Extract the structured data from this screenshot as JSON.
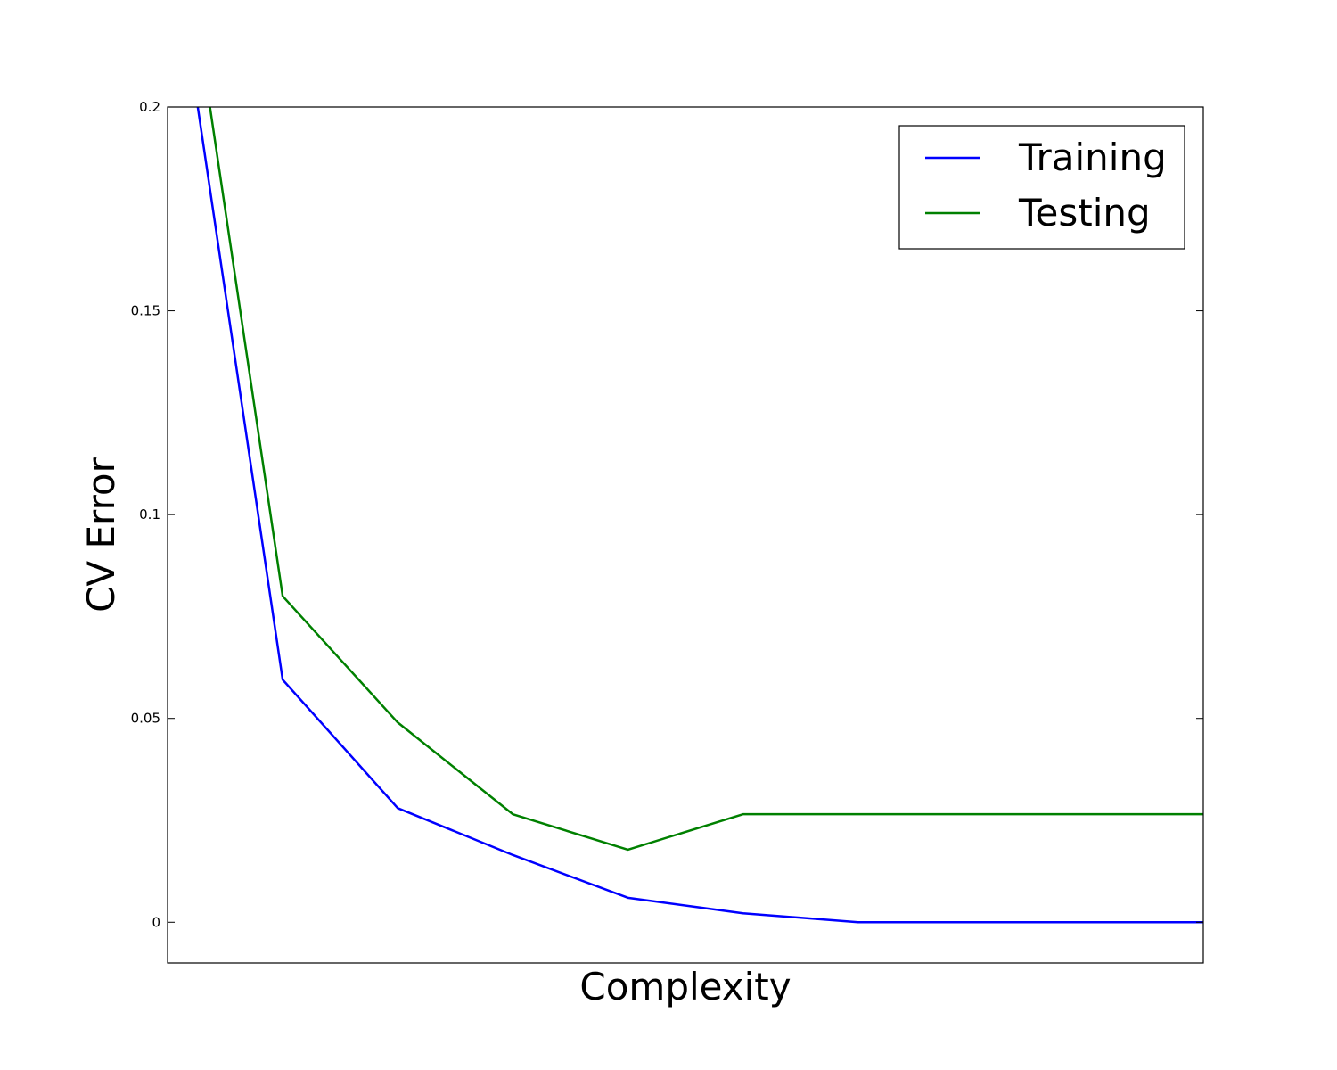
{
  "chart_data": {
    "type": "line",
    "title": "",
    "xlabel": "Complexity",
    "ylabel": "CV Error",
    "x": [
      1,
      2,
      3,
      4,
      5,
      6,
      7,
      8,
      9,
      10
    ],
    "xlim": [
      1,
      10
    ],
    "ylim": [
      -0.01,
      0.2
    ],
    "yticks": [
      0,
      0.05,
      0.1,
      0.15,
      0.2
    ],
    "ytick_labels": [
      "0",
      "0.05",
      "0.1",
      "0.15",
      "0.2"
    ],
    "xticks_shown": false,
    "grid": false,
    "legend": {
      "placement": "top-right"
    },
    "series": [
      {
        "name": "Training",
        "color": "#0000ff",
        "values": [
          0.25,
          0.0595,
          0.028,
          0.0165,
          0.006,
          0.0022,
          0.0,
          0.0,
          0.0,
          0.0
        ]
      },
      {
        "name": "Testing",
        "color": "#008000",
        "values": [
          0.27,
          0.08,
          0.049,
          0.0265,
          0.0178,
          0.0265,
          0.0265,
          0.0265,
          0.0265,
          0.0265
        ]
      }
    ]
  }
}
